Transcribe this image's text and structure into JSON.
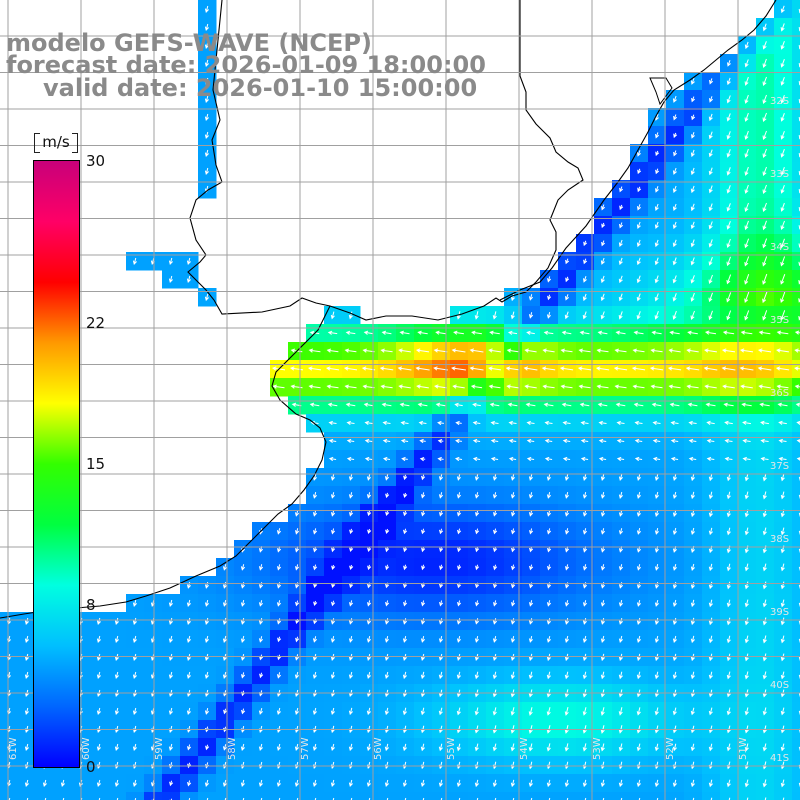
{
  "title": {
    "model": "modelo GEFS-WAVE (NCEP)",
    "forecast": "forecast date: 2026-01-09 18:00:00",
    "valid": "valid date: 2026-01-10 15:00:00"
  },
  "colorbar": {
    "unit": "m/s",
    "ticks": [
      {
        "value": 30,
        "label": "30"
      },
      {
        "value": 22,
        "label": "22"
      },
      {
        "value": 15,
        "label": "15"
      },
      {
        "value": 8,
        "label": "8"
      },
      {
        "value": 0,
        "label": "0"
      }
    ],
    "range": [
      0,
      30
    ],
    "colors": [
      "#0000ff",
      "#0066ff",
      "#00bfff",
      "#00ffe0",
      "#00ff40",
      "#33ff00",
      "#ffff00",
      "#ff9900",
      "#ff0000",
      "#ff0066",
      "#c8007a"
    ]
  },
  "map": {
    "lat_labels": [
      "32S",
      "33S",
      "34S",
      "35S",
      "36S",
      "37S",
      "38S",
      "39S",
      "40S",
      "41S"
    ],
    "lon_labels": [
      "61W",
      "60W",
      "59W",
      "58W",
      "57W",
      "56W",
      "55W",
      "54W",
      "53W",
      "52W",
      "51W"
    ],
    "land_color": "#ffffff",
    "coast_color": "#000000",
    "grid_color": "#a0a0a0",
    "arrow_color": "#ffffff"
  }
}
